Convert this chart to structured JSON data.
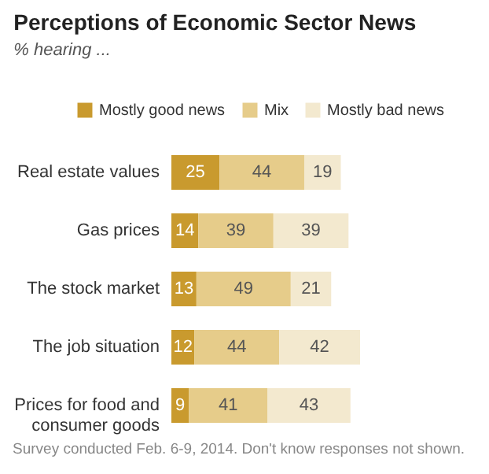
{
  "chart_data": {
    "type": "bar",
    "orientation": "horizontal",
    "stacked": true,
    "title": "Perceptions of Economic Sector News",
    "subtitle": "% hearing ...",
    "categories": [
      "Real estate values",
      "Gas prices",
      "The stock market",
      "The job situation",
      "Prices for food and consumer goods"
    ],
    "series": [
      {
        "name": "Mostly good news",
        "color": "#c99a2e",
        "values": [
          25,
          14,
          13,
          12,
          9
        ]
      },
      {
        "name": "Mix",
        "color": "#e6cc8a",
        "values": [
          44,
          39,
          49,
          44,
          41
        ]
      },
      {
        "name": "Mostly bad news",
        "color": "#f3e9cf",
        "values": [
          19,
          39,
          21,
          42,
          43
        ]
      }
    ],
    "data_labels": true,
    "legend": "top",
    "grid": false,
    "annotations": [
      "Survey conducted Feb. 6-9, 2014. Don't know responses not shown."
    ]
  }
}
